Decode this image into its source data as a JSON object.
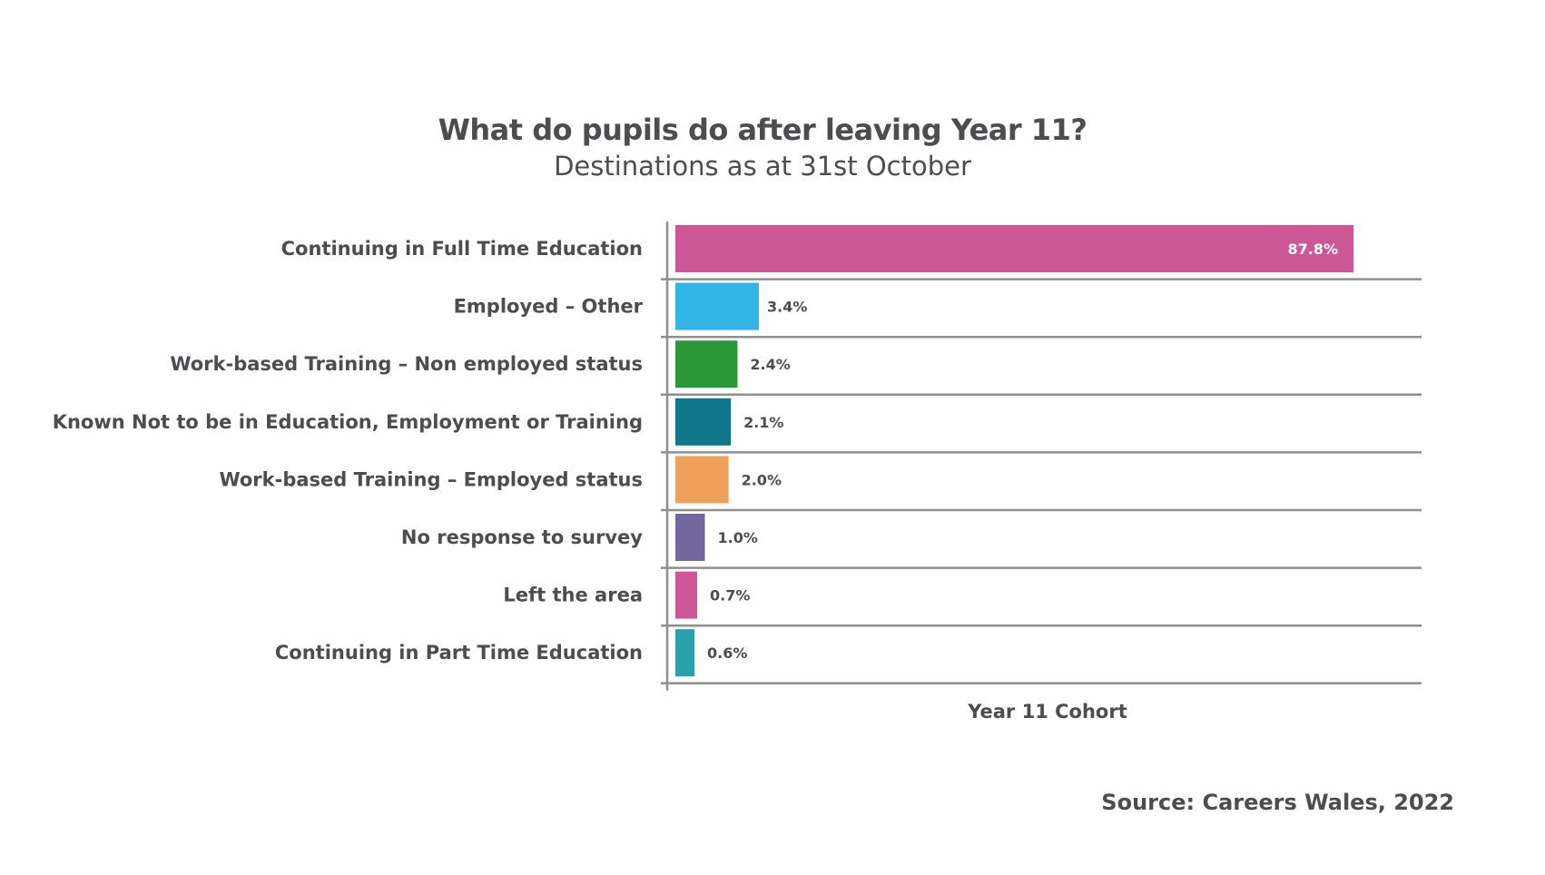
{
  "chart_data": {
    "type": "bar",
    "orientation": "horizontal",
    "title": "What do pupils do after leaving Year 11?",
    "subtitle": "Destinations as at 31st October",
    "xlabel": "Year 11 Cohort",
    "categories": [
      "Continuing in Full Time Education",
      "Employed – Other",
      "Work-based Training – Non employed status",
      "Known Not to be in Education, Employment or Training",
      "Work-based Training – Employed status",
      "No response to survey",
      "Left the area",
      "Continuing in Part Time Education"
    ],
    "values": [
      87.8,
      3.4,
      2.4,
      2.1,
      2.0,
      1.0,
      0.7,
      0.6
    ],
    "value_labels": [
      "87.8%",
      "3.4%",
      "2.4%",
      "2.1%",
      "2.0%",
      "1.0%",
      "0.7%",
      "0.6%"
    ],
    "colors": [
      "#cd5697",
      "#31b4e6",
      "#2a9838",
      "#0e788a",
      "#efa05a",
      "#72679e",
      "#cd5697",
      "#2aa0ab"
    ],
    "grid": false,
    "legend": "none"
  },
  "source": "Source: Careers Wales, 2022"
}
